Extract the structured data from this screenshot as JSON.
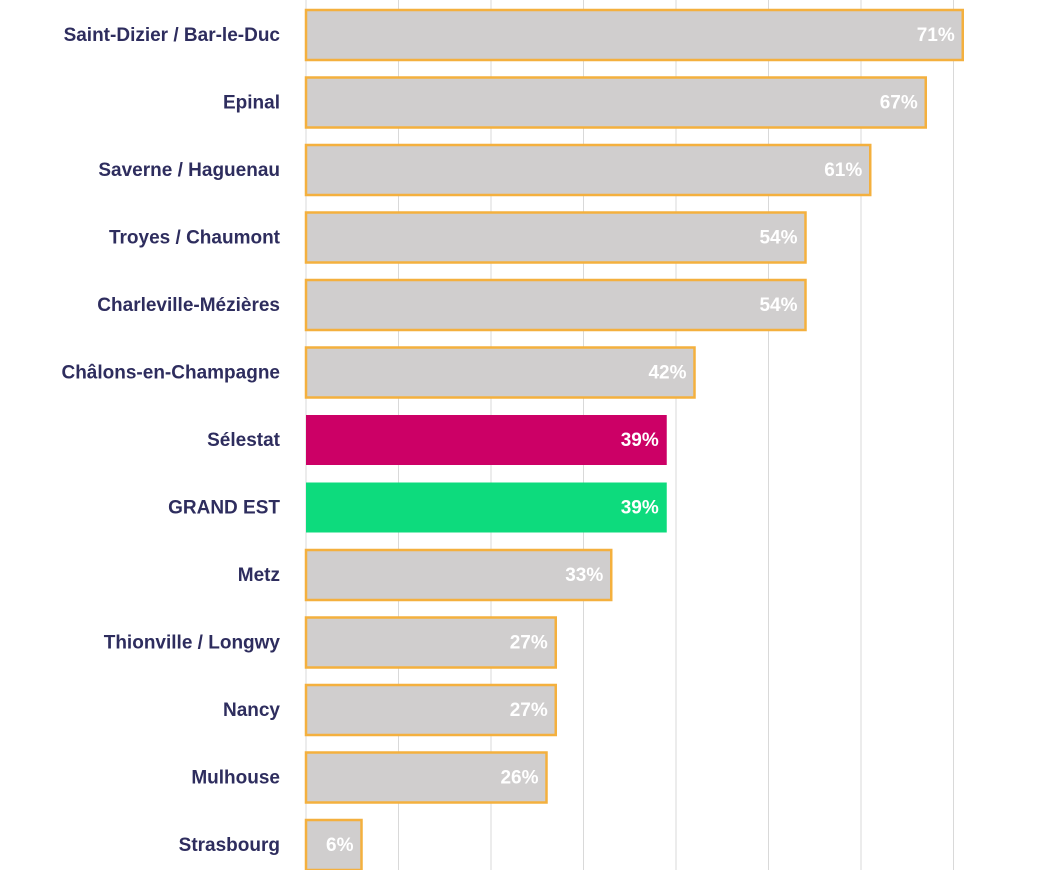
{
  "chart_data": {
    "type": "bar",
    "orientation": "horizontal",
    "categories": [
      "Saint-Dizier / Bar-le-Duc",
      "Epinal",
      "Saverne / Haguenau",
      "Troyes / Chaumont",
      "Charleville-Mézières",
      "Châlons-en-Champagne",
      "Sélestat",
      "GRAND EST",
      "Metz",
      "Thionville / Longwy",
      "Nancy",
      "Mulhouse",
      "Strasbourg"
    ],
    "values": [
      71,
      67,
      61,
      54,
      54,
      42,
      39,
      39,
      33,
      27,
      27,
      26,
      6
    ],
    "value_labels": [
      "71%",
      "67%",
      "61%",
      "54%",
      "54%",
      "42%",
      "39%",
      "39%",
      "33%",
      "27%",
      "27%",
      "26%",
      "6%"
    ],
    "colors": [
      "#d0cece",
      "#d0cece",
      "#d0cece",
      "#d0cece",
      "#d0cece",
      "#d0cece",
      "#cc0066",
      "#0ddb7d",
      "#d0cece",
      "#d0cece",
      "#d0cece",
      "#d0cece",
      "#d0cece"
    ],
    "edge_colors": [
      "#f4b03e",
      "#f4b03e",
      "#f4b03e",
      "#f4b03e",
      "#f4b03e",
      "#f4b03e",
      "none",
      "none",
      "#f4b03e",
      "#f4b03e",
      "#f4b03e",
      "#f4b03e",
      "#f4b03e"
    ],
    "xlim": [
      0,
      80
    ],
    "xticks": [
      0,
      10,
      20,
      30,
      40,
      50,
      60,
      70
    ],
    "grid": true
  }
}
